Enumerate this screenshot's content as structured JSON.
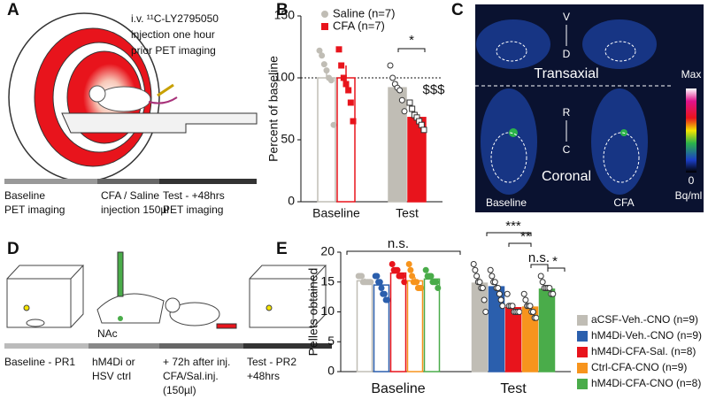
{
  "panel_labels": [
    "A",
    "B",
    "C",
    "D",
    "E"
  ],
  "panel_a": {
    "annotation": [
      "i.v. ¹¹C-LY2795050",
      "injection one hour",
      "prior PET imaging"
    ],
    "timeline": [
      [
        "Baseline",
        "PET imaging"
      ],
      [
        "CFA / Saline",
        "injection 150µl"
      ],
      [
        "Test - +48hrs",
        "PET imaging"
      ]
    ]
  },
  "panel_c": {
    "axis_labels": [
      "V",
      "D",
      "R",
      "C"
    ],
    "views": [
      "Transaxial",
      "Coronal"
    ],
    "conditions": [
      "Baseline",
      "CFA"
    ],
    "colorbar": [
      "Max",
      "0",
      "Bq/ml"
    ]
  },
  "panel_d": {
    "region": "NAc",
    "timeline": [
      [
        "Baseline - PR1"
      ],
      [
        "hM4Di or",
        "HSV ctrl"
      ],
      [
        "+ 72h after inj.",
        "CFA/Sal.inj.",
        "(150µl)"
      ],
      [
        "Test - PR2",
        "+48hrs"
      ]
    ]
  },
  "chart_data": [
    {
      "type": "bar",
      "ylabel": "Percent of baseline",
      "categories": [
        "Baseline",
        "Test"
      ],
      "series": [
        {
          "name": "Saline (n=7)",
          "color": "#c0bdb5",
          "values": [
            100,
            92
          ],
          "errors": [
            8,
            5
          ],
          "points": [
            [
              122,
              118,
              111,
              106,
              100,
              98,
              62
            ],
            [
              110,
              100,
              95,
              92,
              90,
              82,
              73
            ]
          ]
        },
        {
          "name": "CFA (n=7)",
          "color": "#e8141c",
          "values": [
            100,
            68
          ],
          "errors": [
            10,
            4
          ],
          "points": [
            [
              123,
              110,
              100,
              95,
              90,
              80,
              65
            ],
            [
              80,
              75,
              70,
              68,
              65,
              62,
              58
            ]
          ]
        }
      ],
      "reference_line": 100,
      "annotations": [
        "*",
        "$$$"
      ],
      "ylim": [
        0,
        150
      ],
      "yticks": [
        0,
        50,
        100,
        150
      ]
    },
    {
      "type": "bar",
      "ylabel": "Pellets obtained",
      "categories": [
        "Baseline",
        "Test"
      ],
      "series": [
        {
          "name": "aCSF-Veh.-CNO (n=9)",
          "color": "#c0bdb5",
          "values": [
            15.2,
            14.8
          ],
          "errors": [
            0.4,
            1.0
          ],
          "points": [
            [
              16,
              16,
              16,
              15,
              15,
              15,
              15,
              15,
              15
            ],
            [
              18,
              17,
              16,
              15,
              15,
              14,
              14,
              12,
              10
            ]
          ]
        },
        {
          "name": "hM4Di-Veh.-CNO (n=9)",
          "color": "#2b5fad",
          "values": [
            14.5,
            14.2
          ],
          "errors": [
            0.6,
            0.9
          ],
          "points": [
            [
              16,
              16,
              15,
              15,
              14,
              13,
              13,
              12,
              12
            ],
            [
              17,
              16,
              15,
              15,
              14,
              14,
              13,
              12,
              11
            ]
          ]
        },
        {
          "name": "hM4Di-CFA-Sal. (n=8)",
          "color": "#e8141c",
          "values": [
            16.5,
            10.7
          ],
          "errors": [
            0.5,
            0.4
          ],
          "points": [
            [
              18,
              17,
              17,
              17,
              16,
              16,
              16,
              15
            ],
            [
              13,
              11,
              11,
              11,
              10,
              10,
              10,
              10
            ]
          ]
        },
        {
          "name": "Ctrl-CFA-CNO (n=9)",
          "color": "#f7941d",
          "values": [
            15.2,
            10.8
          ],
          "errors": [
            0.6,
            0.5
          ],
          "points": [
            [
              18,
              17,
              16,
              15,
              15,
              15,
              14,
              14,
              14
            ],
            [
              13,
              12,
              11,
              11,
              11,
              10,
              10,
              9,
              9
            ]
          ]
        },
        {
          "name": "hM4Di-CFA-CNO (n=8)",
          "color": "#4aac4a",
          "values": [
            15.5,
            13.8
          ],
          "errors": [
            0.4,
            0.4
          ],
          "points": [
            [
              17,
              16,
              16,
              16,
              15,
              15,
              15,
              14
            ],
            [
              16,
              15,
              14,
              14,
              14,
              14,
              13,
              13
            ]
          ]
        }
      ],
      "annotations": [
        "n.s.",
        "***",
        "**",
        "n.s.",
        "*"
      ],
      "ylim": [
        0,
        20
      ],
      "yticks": [
        0,
        5,
        10,
        15,
        20
      ]
    }
  ]
}
